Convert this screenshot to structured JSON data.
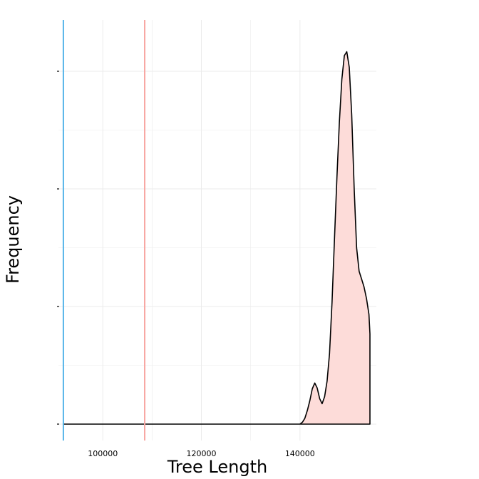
{
  "chart_data": {
    "type": "area",
    "xlabel": "Tree Length",
    "ylabel": "Frequency",
    "xlim": [
      91000,
      155500
    ],
    "ylim": [
      0,
      1.0
    ],
    "x_ticks": [
      100000,
      120000,
      140000
    ],
    "x_tick_labels": [
      "100000",
      "120000",
      "140000"
    ],
    "y_ticks": [
      0,
      0.3,
      0.6,
      0.9
    ],
    "y_tick_labels": [
      "",
      "",
      "",
      ""
    ],
    "grid": true,
    "legend": "none",
    "series": [
      {
        "points": [
          [
            92000,
            0
          ],
          [
            140000,
            0
          ],
          [
            140500,
            0.005
          ],
          [
            141000,
            0.015
          ],
          [
            141500,
            0.035
          ],
          [
            142000,
            0.06
          ],
          [
            142500,
            0.09
          ],
          [
            143000,
            0.105
          ],
          [
            143500,
            0.092
          ],
          [
            144000,
            0.065
          ],
          [
            144500,
            0.052
          ],
          [
            145000,
            0.07
          ],
          [
            145500,
            0.11
          ],
          [
            146000,
            0.18
          ],
          [
            146500,
            0.31
          ],
          [
            147000,
            0.47
          ],
          [
            147500,
            0.63
          ],
          [
            148000,
            0.77
          ],
          [
            148500,
            0.88
          ],
          [
            149000,
            0.94
          ],
          [
            149500,
            0.95
          ],
          [
            150000,
            0.91
          ],
          [
            150500,
            0.79
          ],
          [
            151000,
            0.6
          ],
          [
            151500,
            0.45
          ],
          [
            152000,
            0.39
          ],
          [
            152500,
            0.37
          ],
          [
            153000,
            0.35
          ],
          [
            153500,
            0.32
          ],
          [
            154000,
            0.28
          ],
          [
            154200,
            0.23
          ],
          [
            154200,
            0
          ]
        ]
      }
    ],
    "vlines": [
      {
        "x": 92000,
        "color": "#56B4E9"
      },
      {
        "x": 108500,
        "color": "#F8A8A4"
      }
    ],
    "colors": {
      "fill": "#FDDCD9",
      "stroke": "#000000",
      "grid": "#EBEBEB",
      "background": "#FFFFFF"
    }
  }
}
